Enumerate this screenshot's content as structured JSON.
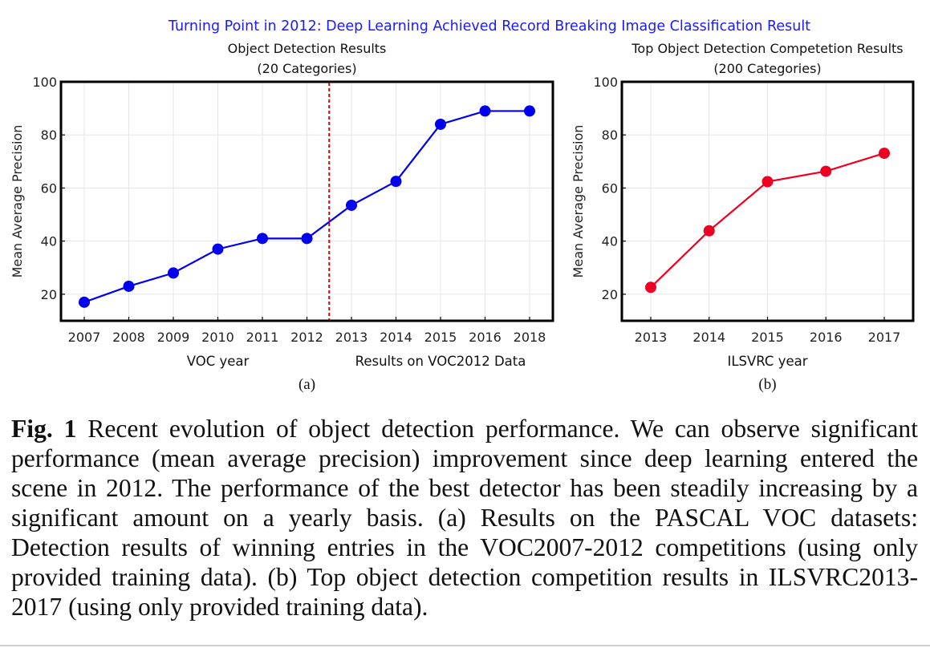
{
  "supertitle": "Turning Point in 2012: Deep Learning Achieved Record Breaking Image Classification Result",
  "colors": {
    "supertitle": "#1a1aff",
    "series_a": "#0000ee",
    "series_b": "#ee0022",
    "divider": "#dd0000"
  },
  "chart_data": [
    {
      "type": "line",
      "title": "Object Detection Results",
      "subtitle": "(20 Categories)",
      "xlabel": "VOC year",
      "xlabel_right": "Results on VOC2012 Data",
      "ylabel": "Mean Average Precision",
      "panel_label": "(a)",
      "categories": [
        "2007",
        "2008",
        "2009",
        "2010",
        "2011",
        "2012",
        "2013",
        "2014",
        "2015",
        "2016",
        "2018"
      ],
      "series": [
        {
          "values": [
            17,
            23,
            28,
            37,
            41,
            41,
            53.5,
            62.5,
            84,
            89,
            89
          ]
        }
      ],
      "ylim": [
        10,
        100
      ],
      "yticks": [
        20,
        40,
        60,
        80,
        100
      ],
      "divider_between": [
        "2012",
        "2013"
      ],
      "grid": true,
      "legend": "none"
    },
    {
      "type": "line",
      "title": "Top Object Detection Competetion Results",
      "subtitle": "(200 Categories)",
      "xlabel": "ILSVRC year",
      "ylabel": "Mean Average Precision",
      "panel_label": "(b)",
      "categories": [
        "2013",
        "2014",
        "2015",
        "2016",
        "2017"
      ],
      "series": [
        {
          "values": [
            22.6,
            43.9,
            62.4,
            66.3,
            73.1
          ]
        }
      ],
      "ylim": [
        10,
        100
      ],
      "yticks": [
        20,
        40,
        60,
        80,
        100
      ],
      "grid": true,
      "legend": "none"
    }
  ],
  "caption": {
    "label": "Fig. 1",
    "text": "Recent evolution of object detection performance. We can observe significant performance (mean average precision) improvement since deep learning entered the scene in 2012. The performance of the best detector has been steadily increasing by a significant amount on a yearly basis. (a) Results on the PASCAL VOC datasets: Detection results of winning entries in the VOC2007-2012 competitions (using only provided training data). (b) Top object detection competition results in ILSVRC2013-2017 (using only provided training data)."
  }
}
